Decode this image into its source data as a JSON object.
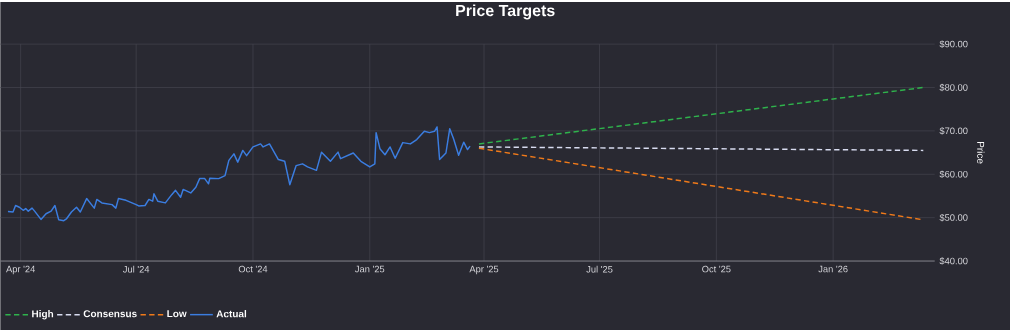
{
  "chart_data": {
    "type": "line",
    "title": "Price Targets",
    "ylabel": "Price",
    "xlim": [
      "2024-03-16",
      "2026-03-22"
    ],
    "xticks": [
      {
        "value": "2024-04-01",
        "label": "Apr '24"
      },
      {
        "value": "2024-07-01",
        "label": "Jul '24"
      },
      {
        "value": "2024-10-01",
        "label": "Oct '24"
      },
      {
        "value": "2025-01-01",
        "label": "Jan '25"
      },
      {
        "value": "2025-04-01",
        "label": "Apr '25"
      },
      {
        "value": "2025-07-01",
        "label": "Jul '25"
      },
      {
        "value": "2025-10-01",
        "label": "Oct '25"
      },
      {
        "value": "2026-01-01",
        "label": "Jan '26"
      }
    ],
    "ylim": [
      40,
      90
    ],
    "yticks": [
      {
        "value": 40,
        "label": "$40.00"
      },
      {
        "value": 50,
        "label": "$50.00"
      },
      {
        "value": 60,
        "label": "$60.00"
      },
      {
        "value": 70,
        "label": "$70.00"
      },
      {
        "value": 80,
        "label": "$80.00"
      },
      {
        "value": 90,
        "label": "$90.00"
      }
    ],
    "grid": true,
    "legend": "bottom left",
    "series": [
      {
        "name": "High",
        "color": "#2fb24c",
        "line_style": "dashed",
        "x": [
          "2025-03-28",
          "2026-03-13"
        ],
        "values": [
          67,
          80
        ]
      },
      {
        "name": "Consensus",
        "color": "#d8dcf0",
        "line_style": "dashed",
        "x": [
          "2025-03-28",
          "2026-03-13"
        ],
        "values": [
          66.3,
          65.5
        ]
      },
      {
        "name": "Low",
        "color": "#f07a1a",
        "line_style": "dashed",
        "x": [
          "2025-03-28",
          "2026-03-13"
        ],
        "values": [
          66,
          49.5
        ]
      },
      {
        "name": "Actual",
        "color": "#3b7de0",
        "line_style": "solid",
        "x": [
          "2024-03-22",
          "2024-03-26",
          "2024-03-28",
          "2024-03-31",
          "2024-04-03",
          "2024-04-05",
          "2024-04-07",
          "2024-04-10",
          "2024-04-12",
          "2024-04-17",
          "2024-04-21",
          "2024-04-25",
          "2024-04-28",
          "2024-05-01",
          "2024-05-05",
          "2024-05-07",
          "2024-05-11",
          "2024-05-15",
          "2024-05-18",
          "2024-05-23",
          "2024-05-29",
          "2024-05-31",
          "2024-06-04",
          "2024-06-12",
          "2024-06-15",
          "2024-06-17",
          "2024-06-23",
          "2024-07-01",
          "2024-07-03",
          "2024-07-08",
          "2024-07-11",
          "2024-07-14",
          "2024-07-15",
          "2024-07-18",
          "2024-07-24",
          "2024-07-29",
          "2024-08-01",
          "2024-08-05",
          "2024-08-07",
          "2024-08-13",
          "2024-08-17",
          "2024-08-20",
          "2024-08-24",
          "2024-08-27",
          "2024-08-28",
          "2024-09-04",
          "2024-09-09",
          "2024-09-12",
          "2024-09-16",
          "2024-09-19",
          "2024-09-23",
          "2024-09-26",
          "2024-10-01",
          "2024-10-07",
          "2024-10-09",
          "2024-10-14",
          "2024-10-21",
          "2024-10-26",
          "2024-10-30",
          "2024-11-04",
          "2024-11-09",
          "2024-11-13",
          "2024-11-20",
          "2024-11-24",
          "2024-12-01",
          "2024-12-07",
          "2024-12-09",
          "2024-12-19",
          "2024-12-25",
          "2025-01-01",
          "2025-01-05",
          "2025-01-06",
          "2025-01-09",
          "2025-01-13",
          "2025-01-17",
          "2025-01-21",
          "2025-01-27",
          "2025-02-02",
          "2025-02-07",
          "2025-02-13",
          "2025-02-17",
          "2025-02-21",
          "2025-02-23",
          "2025-02-25",
          "2025-03-02",
          "2025-03-05",
          "2025-03-08",
          "2025-03-12",
          "2025-03-16",
          "2025-03-19",
          "2025-03-21"
        ],
        "values": [
          51.4,
          51.3,
          52.8,
          52.4,
          51.7,
          52.1,
          51.5,
          52.2,
          51.5,
          49.6,
          50.9,
          51.5,
          52.8,
          49.5,
          49.3,
          49.7,
          51.3,
          52.4,
          51.3,
          54.4,
          52.2,
          54.2,
          53.4,
          53.0,
          52.2,
          54.4,
          54.0,
          53.0,
          52.7,
          52.8,
          54.2,
          53.8,
          55.5,
          53.8,
          53.4,
          55.3,
          56.3,
          54.7,
          56.5,
          55.7,
          57.0,
          59.0,
          59.0,
          57.8,
          59.1,
          59.0,
          59.7,
          63.2,
          64.7,
          62.8,
          65.5,
          64.3,
          66.3,
          67.0,
          66.3,
          67.0,
          63.4,
          63.0,
          57.6,
          62.0,
          62.4,
          61.7,
          60.9,
          65.1,
          63.0,
          65.1,
          63.6,
          64.9,
          63.0,
          61.7,
          62.4,
          69.6,
          65.9,
          64.5,
          66.3,
          63.7,
          67.3,
          67.0,
          68.0,
          69.9,
          69.6,
          69.9,
          70.9,
          63.4,
          64.9,
          70.5,
          68.2,
          64.4,
          67.4,
          65.7,
          66.5
        ]
      }
    ]
  }
}
